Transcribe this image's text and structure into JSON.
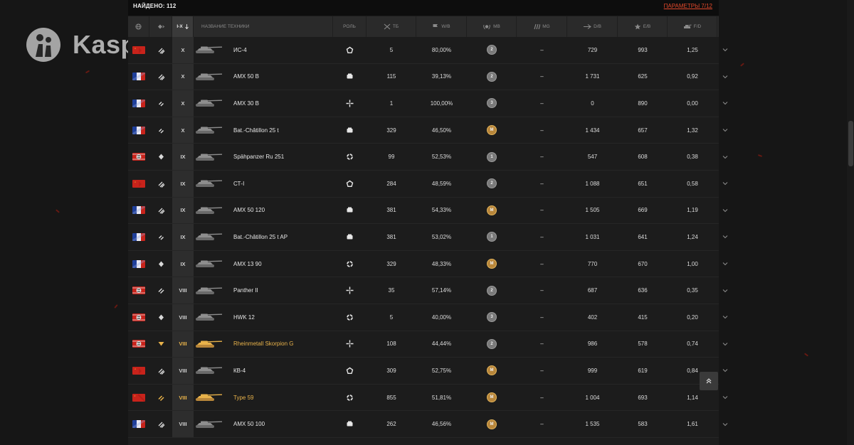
{
  "header": {
    "found_label": "НАЙДЕНО: 112",
    "params_link": "ПАРАМЕТРЫ 7/12"
  },
  "watermark": {
    "text": "Kaspi.kz"
  },
  "columns": {
    "tier": "I-X",
    "name": "НАЗВАНИЕ ТЕХНИКИ",
    "role": "РОЛЬ",
    "battles": "ТБ",
    "winrate": "W/B",
    "mb": "МВ",
    "mg": "МG",
    "db": "D/B",
    "eb": "E/B",
    "fo": "F/D"
  },
  "rows": [
    {
      "nation": "ussr",
      "cls": "heavy",
      "tier": "X",
      "name": "ИС-4",
      "role": "pentagon",
      "battles": "5",
      "winrate": "80,00%",
      "mastery": "2",
      "mg": "–",
      "db": "729",
      "eb": "993",
      "fo": "1,25",
      "premium": false
    },
    {
      "nation": "france",
      "cls": "heavy",
      "tier": "X",
      "name": "AMX 50 B",
      "role": "card",
      "battles": "115",
      "winrate": "39,13%",
      "mastery": "2",
      "mg": "–",
      "db": "1 731",
      "eb": "625",
      "fo": "0,92",
      "premium": false
    },
    {
      "nation": "france",
      "cls": "td",
      "tier": "X",
      "name": "AMX 30 B",
      "role": "cross",
      "battles": "1",
      "winrate": "100,00%",
      "mastery": "3",
      "mg": "–",
      "db": "0",
      "eb": "890",
      "fo": "0,00",
      "premium": false
    },
    {
      "nation": "france",
      "cls": "td",
      "tier": "X",
      "name": "Bat.-Châtillon 25 t",
      "role": "card",
      "battles": "329",
      "winrate": "46,50%",
      "mastery": "M",
      "mg": "–",
      "db": "1 434",
      "eb": "657",
      "fo": "1,32",
      "premium": false
    },
    {
      "nation": "germany",
      "cls": "light",
      "tier": "IX",
      "name": "Spähpanzer Ru 251",
      "role": "ring",
      "battles": "99",
      "winrate": "52,53%",
      "mastery": "1",
      "mg": "–",
      "db": "547",
      "eb": "608",
      "fo": "0,38",
      "premium": false
    },
    {
      "nation": "ussr",
      "cls": "heavy",
      "tier": "IX",
      "name": "СТ-I",
      "role": "pentagon",
      "battles": "284",
      "winrate": "48,59%",
      "mastery": "2",
      "mg": "–",
      "db": "1 088",
      "eb": "651",
      "fo": "0,58",
      "premium": false
    },
    {
      "nation": "france",
      "cls": "heavy",
      "tier": "IX",
      "name": "AMX 50 120",
      "role": "card",
      "battles": "381",
      "winrate": "54,33%",
      "mastery": "M",
      "mg": "–",
      "db": "1 505",
      "eb": "669",
      "fo": "1,19",
      "premium": false
    },
    {
      "nation": "france",
      "cls": "td",
      "tier": "IX",
      "name": "Bat.-Châtillon 25 t AP",
      "role": "card",
      "battles": "381",
      "winrate": "53,02%",
      "mastery": "1",
      "mg": "–",
      "db": "1 031",
      "eb": "641",
      "fo": "1,24",
      "premium": false
    },
    {
      "nation": "france",
      "cls": "light",
      "tier": "IX",
      "name": "AMX 13 90",
      "role": "ring",
      "battles": "329",
      "winrate": "48,33%",
      "mastery": "M",
      "mg": "–",
      "db": "770",
      "eb": "670",
      "fo": "1,00",
      "premium": false
    },
    {
      "nation": "germany",
      "cls": "medium",
      "tier": "VIII",
      "name": "Panther II",
      "role": "cross",
      "battles": "35",
      "winrate": "57,14%",
      "mastery": "2",
      "mg": "–",
      "db": "687",
      "eb": "636",
      "fo": "0,35",
      "premium": false
    },
    {
      "nation": "germany",
      "cls": "light",
      "tier": "VIII",
      "name": "HWK 12",
      "role": "ring",
      "battles": "5",
      "winrate": "40,00%",
      "mastery": "3",
      "mg": "–",
      "db": "402",
      "eb": "415",
      "fo": "0,20",
      "premium": false
    },
    {
      "nation": "germany",
      "cls": "spg-gold",
      "tier": "VIII",
      "name": "Rheinmetall Skorpion G",
      "role": "cross",
      "battles": "108",
      "winrate": "44,44%",
      "mastery": "2",
      "mg": "–",
      "db": "986",
      "eb": "578",
      "fo": "0,74",
      "premium": true
    },
    {
      "nation": "ussr",
      "cls": "heavy",
      "tier": "VIII",
      "name": "КВ-4",
      "role": "pentagon",
      "battles": "309",
      "winrate": "52,75%",
      "mastery": "M",
      "mg": "–",
      "db": "999",
      "eb": "619",
      "fo": "0,84",
      "premium": false
    },
    {
      "nation": "china",
      "cls": "td-gold",
      "tier": "VIII",
      "name": "Type 59",
      "role": "ring",
      "battles": "855",
      "winrate": "51,81%",
      "mastery": "M",
      "mg": "–",
      "db": "1 004",
      "eb": "693",
      "fo": "1,14",
      "premium": true
    },
    {
      "nation": "france",
      "cls": "heavy",
      "tier": "VIII",
      "name": "AMX 50 100",
      "role": "card",
      "battles": "262",
      "winrate": "46,56%",
      "mastery": "M",
      "mg": "–",
      "db": "1 535",
      "eb": "583",
      "fo": "1,61",
      "premium": false
    }
  ],
  "colors": {
    "accent": "#e2492b",
    "premium": "#e8b24a",
    "mastery_gold": "#b8863a",
    "mastery_silver": "#7a7a7a"
  }
}
